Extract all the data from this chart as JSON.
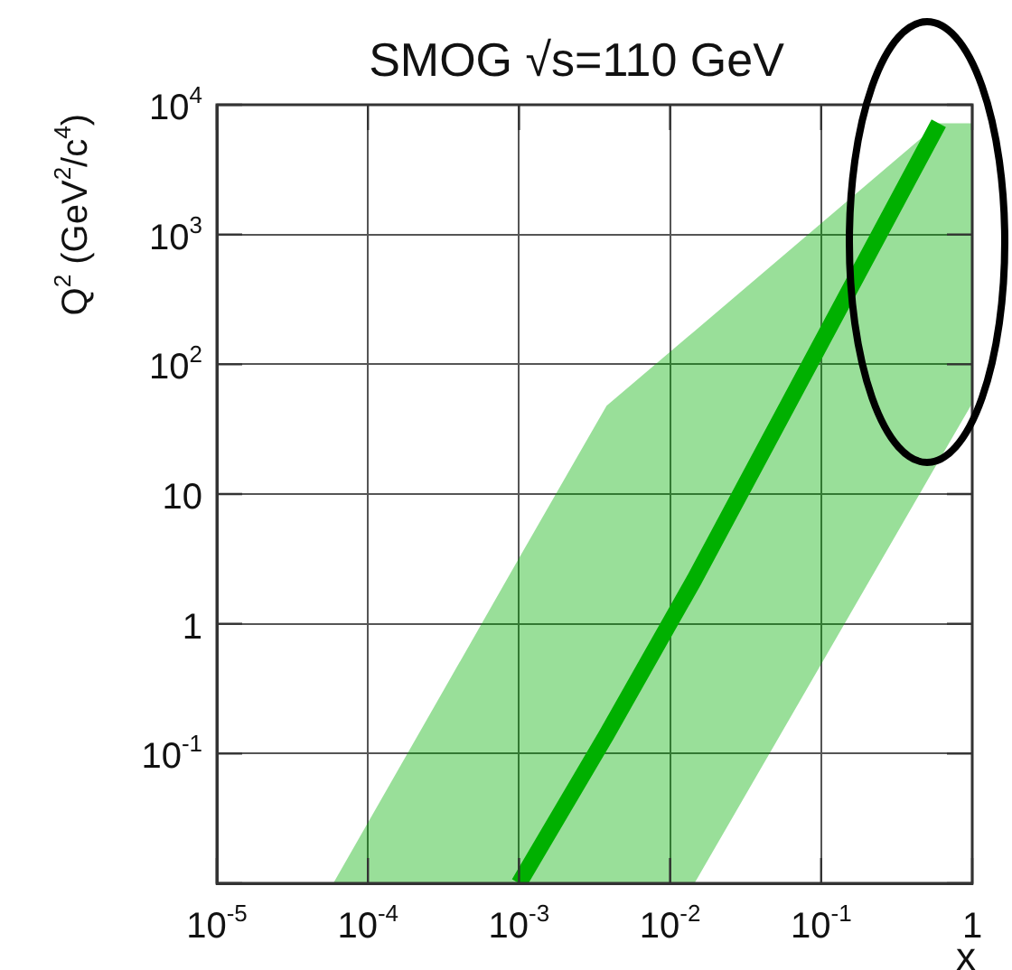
{
  "chart_data": {
    "type": "line",
    "title": "SMOG √s=110 GeV",
    "xlabel": "x",
    "ylabel": "Q$^{2}$ (GeV$^{2}$/c$^{4}$)",
    "log": "xy",
    "grid": true,
    "marker": "none",
    "legend": false,
    "xlim": [
      1e-05,
      1
    ],
    "ylim": [
      0.01,
      10000
    ],
    "xticks": [
      {
        "value": 1e-05,
        "label": "10$^{-5}$"
      },
      {
        "value": 0.0001,
        "label": "10$^{-4}$"
      },
      {
        "value": 0.001,
        "label": "10$^{-3}$"
      },
      {
        "value": 0.01,
        "label": "10$^{-2}$"
      },
      {
        "value": 0.1,
        "label": "10$^{-1}$"
      },
      1
    ],
    "yticks": [
      {
        "value": 0.01,
        "label": null
      },
      {
        "value": 0.1,
        "label": "10$^{-1}$"
      },
      1,
      10,
      {
        "value": 100,
        "label": "10$^{2}$"
      },
      {
        "value": 1000,
        "label": "10$^{3}$"
      },
      {
        "value": 10000,
        "label": "10$^{4}$"
      }
    ],
    "x": [
      5.9e-05,
      0.001,
      0.0038,
      0.0145,
      0.6,
      1
    ],
    "series": [
      {
        "color": "#00b000",
        "values": [
          null,
          0.01,
          0.14,
          2.2,
          7200,
          null
        ],
        "lower": [
          0.01,
          0.01,
          0.01,
          0.01,
          18,
          50
        ],
        "upper": [
          0.01,
          3.2,
          48,
          180,
          7200,
          7200
        ]
      }
    ]
  }
}
